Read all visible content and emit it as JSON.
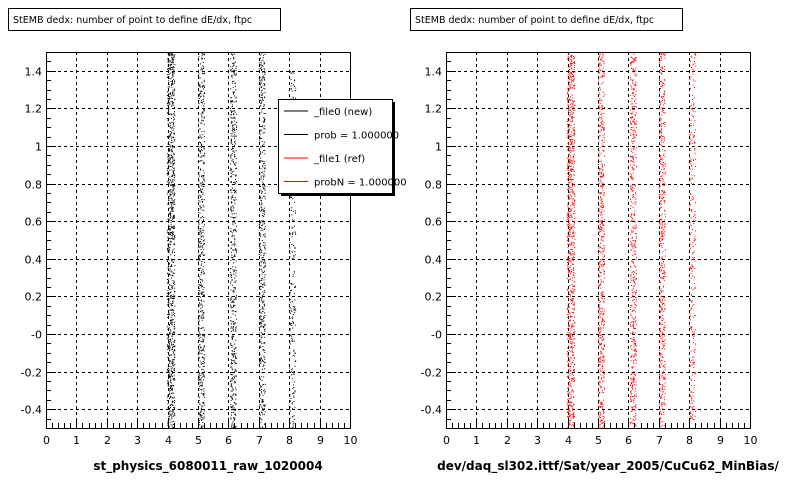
{
  "canvas_footer": "",
  "chart_data": [
    {
      "type": "scatter",
      "title": "StEMB dedx: number of point to define dE/dx, ftpc",
      "xlabel": "st_physics_6080011_raw_1020004",
      "ylabel": "",
      "xlim": [
        0,
        10
      ],
      "ylim": [
        -0.5,
        1.5
      ],
      "x_ticks": [
        "0",
        "1",
        "2",
        "3",
        "4",
        "5",
        "6",
        "7",
        "8",
        "9",
        "10"
      ],
      "y_ticks": [
        "-0.4",
        "-0.2",
        "-0",
        "0.2",
        "0.4",
        "0.6",
        "0.8",
        "1",
        "1.2",
        "1.4"
      ],
      "grid": true,
      "legend_position": "top-right",
      "legend": [
        {
          "label": "_file0 (new)",
          "color": "#000000"
        },
        {
          "label": "prob = 1.000000",
          "color": "#000000"
        },
        {
          "label": "_file1 (ref)",
          "color": "#ff0000"
        },
        {
          "label": "probN = 1.000000",
          "color": "#ff0000"
        }
      ],
      "series": [
        {
          "color": "#000000",
          "bands": [
            {
              "x": 4.1,
              "width": 0.25,
              "y_range": [
                -0.5,
                1.5
              ],
              "density": 1.0
            },
            {
              "x": 5.1,
              "width": 0.2,
              "y_range": [
                -0.5,
                1.5
              ],
              "density": 0.6
            },
            {
              "x": 6.15,
              "width": 0.2,
              "y_range": [
                -0.5,
                1.5
              ],
              "density": 0.6
            },
            {
              "x": 7.1,
              "width": 0.2,
              "y_range": [
                -0.5,
                1.5
              ],
              "density": 0.55
            },
            {
              "x": 8.1,
              "width": 0.2,
              "y_range": [
                -0.5,
                1.4
              ],
              "density": 0.3
            }
          ]
        }
      ]
    },
    {
      "type": "scatter",
      "title": "StEMB dedx: number of point to define dE/dx, ftpc",
      "xlabel": "dev/daq_sl302.ittf/Sat/year_2005/CuCu62_MinBias/",
      "ylabel": "",
      "xlim": [
        0,
        10
      ],
      "ylim": [
        -0.5,
        1.5
      ],
      "x_ticks": [
        "0",
        "1",
        "2",
        "3",
        "4",
        "5",
        "6",
        "7",
        "8",
        "9",
        "10"
      ],
      "y_ticks": [
        "-0.4",
        "-0.2",
        "-0",
        "0.2",
        "0.4",
        "0.6",
        "0.8",
        "1",
        "1.2",
        "1.4"
      ],
      "grid": true,
      "series": [
        {
          "color": "#ff0000",
          "bands": [
            {
              "x": 4.1,
              "width": 0.25,
              "y_range": [
                -0.5,
                1.5
              ],
              "density": 1.0
            },
            {
              "x": 5.1,
              "width": 0.2,
              "y_range": [
                -0.5,
                1.5
              ],
              "density": 0.6
            },
            {
              "x": 6.15,
              "width": 0.2,
              "y_range": [
                -0.5,
                1.5
              ],
              "density": 0.6
            },
            {
              "x": 7.1,
              "width": 0.2,
              "y_range": [
                -0.5,
                1.5
              ],
              "density": 0.55
            },
            {
              "x": 8.1,
              "width": 0.2,
              "y_range": [
                -0.5,
                1.5
              ],
              "density": 0.3
            }
          ]
        }
      ]
    }
  ]
}
